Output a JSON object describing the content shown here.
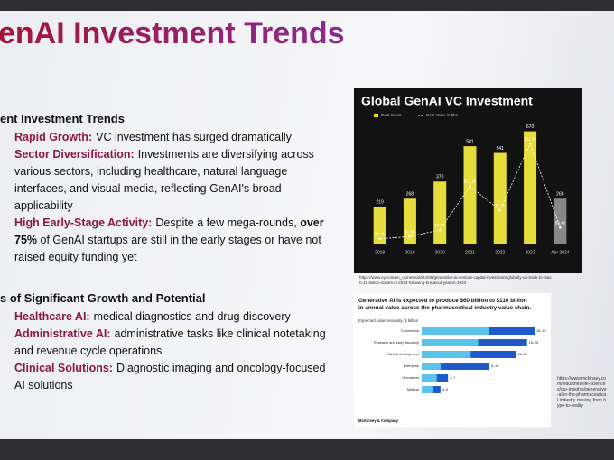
{
  "title": "enAI Investment Trends",
  "sections": [
    {
      "heading": "ent Investment Trends",
      "items": [
        {
          "lead": "Rapid Growth:",
          "parts": [
            {
              "text": "VC investment has surged dramatically"
            }
          ]
        },
        {
          "lead": "Sector Diversification:",
          "parts": [
            {
              "text": "Investments are diversifying across various sectors, including healthcare, natural language interfaces, and visual media, reflecting GenAI's broad applicability"
            }
          ]
        },
        {
          "lead": "High Early-Stage Activity:",
          "parts": [
            {
              "text": "Despite a few mega-rounds,"
            },
            {
              "text": "over 75%",
              "bold": true
            },
            {
              "text": "of GenAI startups are still in the early stages or have not raised equity funding yet"
            }
          ]
        }
      ]
    },
    {
      "heading": "s of Significant Growth and Potential",
      "items": [
        {
          "lead": "Healthcare AI:",
          "parts": [
            {
              "text": "medical diagnostics and drug discovery"
            }
          ]
        },
        {
          "lead": "Administrative AI:",
          "parts": [
            {
              "text": "administrative tasks like clinical notetaking and revenue cycle operations"
            }
          ]
        },
        {
          "lead": "Clinical Solutions:",
          "parts": [
            {
              "text": "Diagnostic imaging and oncology-focused AI solutions"
            }
          ]
        }
      ]
    }
  ],
  "chart_data": [
    {
      "type": "bar",
      "title": "Global GenAI VC Investment",
      "categories": [
        "2018",
        "2019",
        "2020",
        "2021",
        "2022",
        "2023",
        "Apr 2024"
      ],
      "series": [
        {
          "name": "Deal Count",
          "color": "#e6dc3c",
          "values": [
            219,
            268,
            370,
            581,
            541,
            670,
            268
          ]
        },
        {
          "name": "Deal Value in $bn",
          "color": "#ffffff",
          "axis": "y2",
          "values": [
            1.0,
            1.5,
            2.9,
            12.2,
            7.1,
            21.3,
            3.4
          ],
          "value_labels": [
            "$1.0b",
            "$1.5b",
            "$2.9b",
            "$12.2b",
            "$7.1b",
            "$21.3b",
            "$3.4b"
          ]
        }
      ],
      "ylim": [
        0,
        700
      ],
      "y2lim": [
        0,
        25
      ]
    },
    {
      "type": "range-bar",
      "title": "Generative AI is expected to produce $60 billion to $110 billion in annual value across the pharmaceutical industry value chain.",
      "subtitle": "Expected value annually, $ billion",
      "categories": [
        "Commercial",
        "Research and early discovery",
        "Clinical development",
        "Enterprise",
        "Operations",
        "Medical"
      ],
      "low": [
        18,
        15,
        13,
        5,
        4,
        3
      ],
      "high": [
        30,
        28,
        25,
        18,
        7,
        5
      ],
      "value_labels": [
        "18–30",
        "15–28",
        "13–25",
        "5–18",
        "4–7",
        "3–5"
      ],
      "colors": [
        "#5bc2ea",
        "#1f5bc8"
      ],
      "xlim": [
        0,
        30
      ],
      "source": "McKinsey & Company"
    }
  ],
  "urls": [
    "https://www.ey.com/en_us/news/2024/05/generative-ai-venture-capital-investment-globally-on-track-to-reach-12-billion-dollars-in-2024-following-breakout-year-in-2023",
    "https://www.mckinsey.com/industries/life-sciences/our-insights/generative-ai-in-the-pharmaceutical-industry-moving-from-hype-to-reality"
  ]
}
